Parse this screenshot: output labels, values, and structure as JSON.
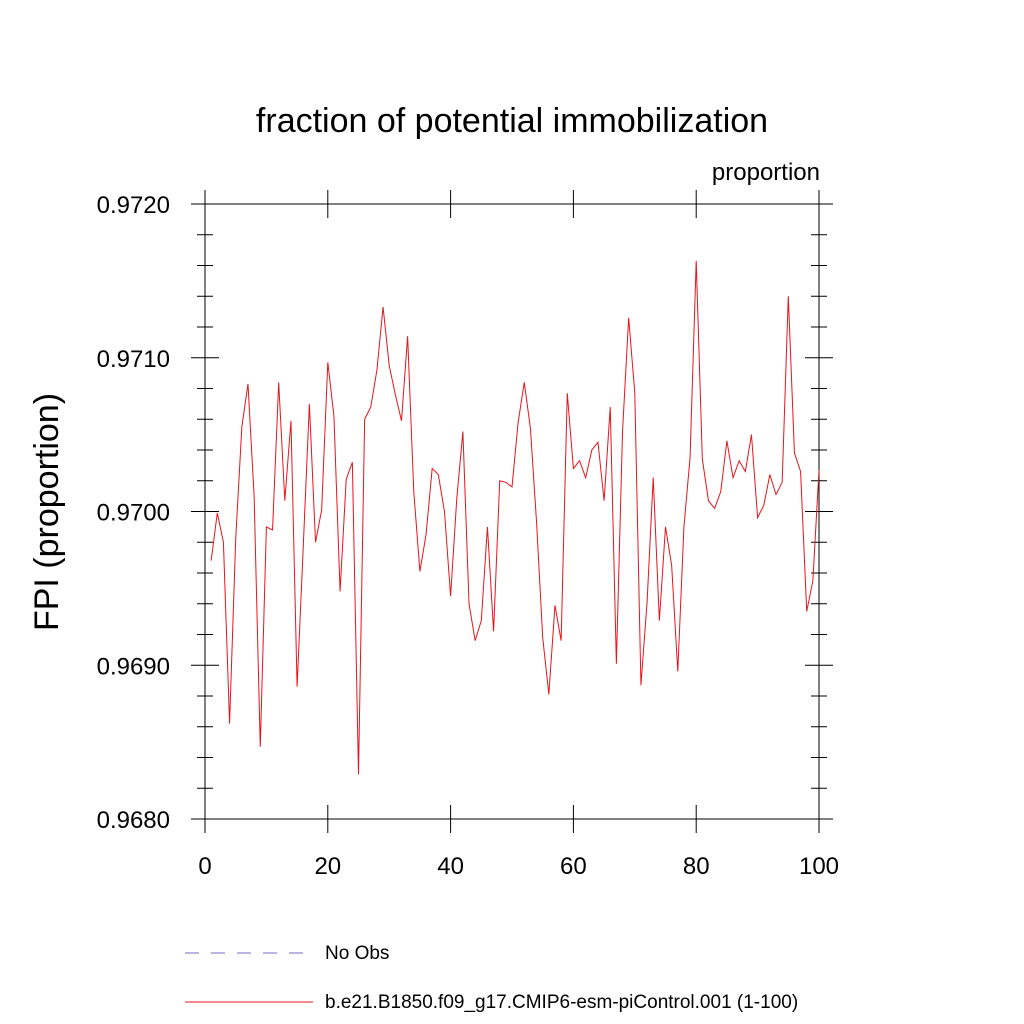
{
  "chart_data": {
    "type": "line",
    "title": "fraction of potential immobilization",
    "units_label": "proportion",
    "ylabel": "FPI  (proportion)",
    "xlabel": "",
    "xlim": [
      0,
      100
    ],
    "ylim": [
      0.968,
      0.972
    ],
    "xticks": [
      0,
      20,
      40,
      60,
      80,
      100
    ],
    "xtick_labels": [
      "0",
      "20",
      "40",
      "60",
      "80",
      "100"
    ],
    "yticks": [
      0.968,
      0.969,
      0.97,
      0.971,
      0.972
    ],
    "ytick_labels": [
      "0.9680",
      "0.9690",
      "0.9700",
      "0.9710",
      "0.9720"
    ],
    "grid": false,
    "legend": [
      {
        "name": "No Obs",
        "color": "#7b68c8",
        "style": "dashed"
      },
      {
        "name": "b.e21.B1850.f09_g17.CMIP6-esm-piControl.001 (1-100)",
        "color": "#e8141c",
        "style": "solid"
      }
    ],
    "series": [
      {
        "name": "b.e21.B1850.f09_g17.CMIP6-esm-piControl.001 (1-100)",
        "color": "#e8141c",
        "x": [
          1,
          2,
          3,
          4,
          5,
          6,
          7,
          8,
          9,
          10,
          11,
          12,
          13,
          14,
          15,
          16,
          17,
          18,
          19,
          20,
          21,
          22,
          23,
          24,
          25,
          26,
          27,
          28,
          29,
          30,
          31,
          32,
          33,
          34,
          35,
          36,
          37,
          38,
          39,
          40,
          41,
          42,
          43,
          44,
          45,
          46,
          47,
          48,
          49,
          50,
          51,
          52,
          53,
          54,
          55,
          56,
          57,
          58,
          59,
          60,
          61,
          62,
          63,
          64,
          65,
          66,
          67,
          68,
          69,
          70,
          71,
          72,
          73,
          74,
          75,
          76,
          77,
          78,
          79,
          80,
          81,
          82,
          83,
          84,
          85,
          86,
          87,
          88,
          89,
          90,
          91,
          92,
          93,
          94,
          95,
          96,
          97,
          98,
          99,
          100
        ],
        "values": [
          0.96968,
          0.96999,
          0.9698,
          0.96862,
          0.96982,
          0.97055,
          0.97083,
          0.9701,
          0.96847,
          0.9699,
          0.96988,
          0.97084,
          0.97007,
          0.97059,
          0.96886,
          0.96977,
          0.9707,
          0.9698,
          0.97001,
          0.97097,
          0.97062,
          0.96948,
          0.97021,
          0.97032,
          0.96829,
          0.9706,
          0.97068,
          0.97092,
          0.97133,
          0.97095,
          0.97076,
          0.97059,
          0.97114,
          0.97013,
          0.96961,
          0.96985,
          0.97028,
          0.97024,
          0.97,
          0.96945,
          0.97008,
          0.97052,
          0.9694,
          0.96916,
          0.96929,
          0.9699,
          0.96922,
          0.9702,
          0.97019,
          0.97016,
          0.97058,
          0.97084,
          0.97054,
          0.96993,
          0.96918,
          0.96881,
          0.96939,
          0.96916,
          0.97077,
          0.97028,
          0.97033,
          0.97022,
          0.9704,
          0.97045,
          0.97007,
          0.97068,
          0.96901,
          0.97052,
          0.97126,
          0.97077,
          0.96887,
          0.96941,
          0.97022,
          0.96929,
          0.9699,
          0.96965,
          0.96896,
          0.9699,
          0.97035,
          0.97163,
          0.97034,
          0.97007,
          0.97002,
          0.97013,
          0.97046,
          0.97022,
          0.97033,
          0.97026,
          0.9705,
          0.96996,
          0.97004,
          0.97024,
          0.97011,
          0.97019,
          0.9714,
          0.97038,
          0.97026,
          0.96935,
          0.96955,
          0.97027
        ]
      }
    ]
  }
}
